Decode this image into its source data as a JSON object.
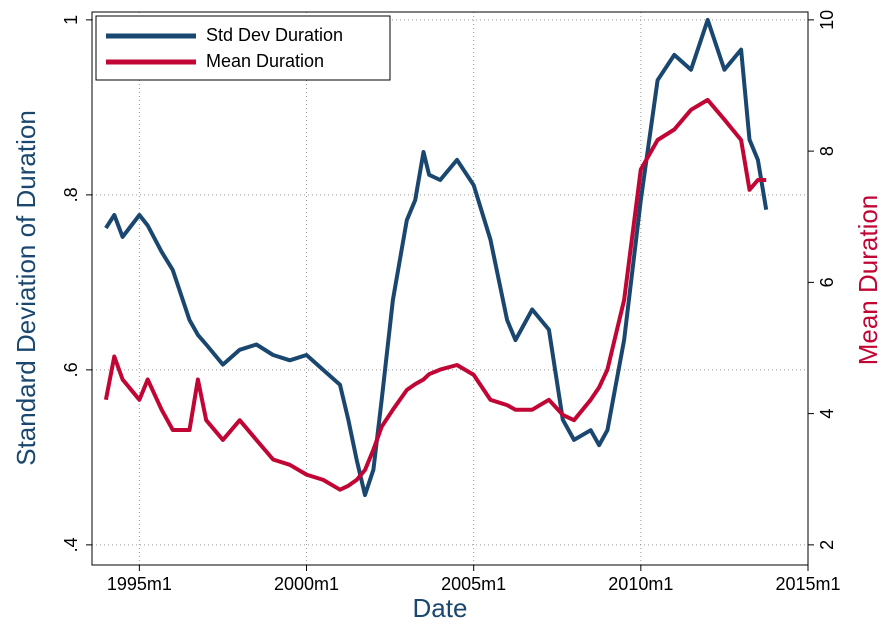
{
  "chart_data": {
    "type": "line",
    "xlabel": "Date",
    "ylabel": "Standard Deviation of Duration",
    "y2label": "Mean Duration",
    "x": [
      "1994m1",
      "1994m4",
      "1994m7",
      "1995m1",
      "1995m4",
      "1995m9",
      "1996m1",
      "1996m7",
      "1996m10",
      "1997m1",
      "1997m7",
      "1998m1",
      "1998m7",
      "1999m1",
      "1999m7",
      "2000m1",
      "2000m7",
      "2001m1",
      "2001m4",
      "2001m7",
      "2001m10",
      "2002m1",
      "2002m4",
      "2002m8",
      "2003m1",
      "2003m4",
      "2003m7",
      "2003m9",
      "2004m1",
      "2004m7",
      "2005m1",
      "2005m7",
      "2006m1",
      "2006m4",
      "2006m10",
      "2007m4",
      "2007m9",
      "2008m1",
      "2008m7",
      "2008m10",
      "2009m1",
      "2009m7",
      "2010m1",
      "2010m7",
      "2011m1",
      "2011m7",
      "2012m1",
      "2012m7",
      "2013m1",
      "2013m4",
      "2013m7",
      "2013m10"
    ],
    "series": [
      {
        "name": "Std Dev Duration",
        "color": "#1a476f",
        "axis": "y",
        "values": [
          0.762,
          0.777,
          0.752,
          0.777,
          0.765,
          0.735,
          0.714,
          0.657,
          0.64,
          0.629,
          0.606,
          0.623,
          0.629,
          0.617,
          0.611,
          0.617,
          0.6,
          0.583,
          0.543,
          0.497,
          0.457,
          0.486,
          0.566,
          0.68,
          0.771,
          0.794,
          0.849,
          0.823,
          0.817,
          0.84,
          0.811,
          0.749,
          0.657,
          0.634,
          0.669,
          0.646,
          0.543,
          0.52,
          0.531,
          0.514,
          0.531,
          0.634,
          0.794,
          0.931,
          0.96,
          0.943,
          1.0,
          0.943,
          0.966,
          0.863,
          0.84,
          0.783
        ]
      },
      {
        "name": "Mean Duration",
        "color": "#c10534",
        "axis": "y2",
        "values": [
          4.21,
          4.87,
          4.52,
          4.21,
          4.52,
          4.06,
          3.75,
          3.75,
          4.52,
          3.9,
          3.6,
          3.9,
          3.6,
          3.3,
          3.22,
          3.07,
          2.99,
          2.84,
          2.9,
          2.99,
          3.14,
          3.45,
          3.8,
          4.06,
          4.36,
          4.45,
          4.52,
          4.6,
          4.67,
          4.74,
          4.59,
          4.21,
          4.13,
          4.06,
          4.06,
          4.21,
          3.98,
          3.9,
          4.21,
          4.4,
          4.67,
          5.73,
          7.72,
          8.17,
          8.33,
          8.63,
          8.78,
          8.48,
          8.17,
          7.41,
          7.56,
          7.56
        ]
      }
    ],
    "xlim": [
      "1993m8",
      "2015m1"
    ],
    "xticks": [
      "1995m1",
      "2000m1",
      "2005m1",
      "2010m1",
      "2015m1"
    ],
    "ylim": [
      0.377,
      1.009
    ],
    "yticks": [
      {
        "value": 0.4,
        "label": ".4"
      },
      {
        "value": 0.6,
        "label": ".6"
      },
      {
        "value": 0.8,
        "label": ".8"
      },
      1
    ],
    "y2lim": [
      1.693,
      10.12
    ],
    "y2ticks": [
      2,
      4,
      6,
      8,
      10
    ],
    "grid": true,
    "legend": "top-left"
  }
}
